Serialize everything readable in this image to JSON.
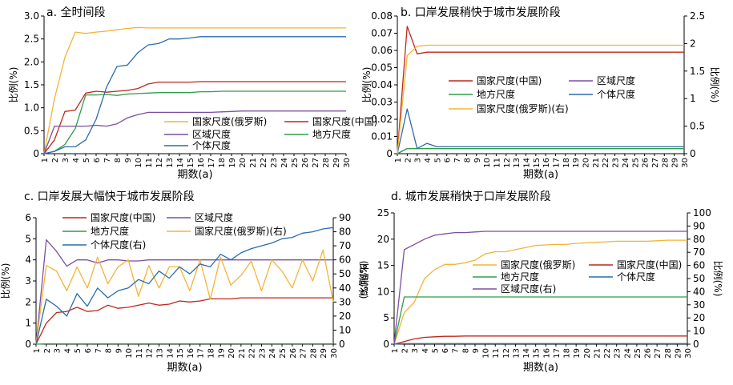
{
  "colors": {
    "national_ru": "#f5b335",
    "national_cn": "#c0261a",
    "regional": "#7b4fa0",
    "local": "#2f9e49",
    "individual": "#2b6cad"
  },
  "chart_data": [
    {
      "type": "line",
      "title": "a. 全时间段",
      "xlabel": "期数(a)",
      "ylabel": "比例(%)",
      "x": [
        1,
        2,
        3,
        4,
        5,
        6,
        7,
        8,
        9,
        10,
        11,
        12,
        13,
        14,
        15,
        16,
        17,
        18,
        19,
        20,
        21,
        22,
        23,
        24,
        25,
        26,
        27,
        28,
        29,
        30
      ],
      "ylim": [
        0,
        3.0
      ],
      "yticks": [
        "0",
        "0.5",
        "1.0",
        "1.5",
        "2.0",
        "2.5",
        "3.0"
      ],
      "legend": [
        "国家尺度(俄罗斯)",
        "国家尺度(中国)",
        "区域尺度",
        "地方尺度",
        "个体尺度"
      ],
      "series": [
        {
          "name": "国家尺度(俄罗斯)",
          "color": "national_ru",
          "values": [
            0,
            1.2,
            2.1,
            2.65,
            2.62,
            2.65,
            2.67,
            2.7,
            2.73,
            2.75,
            2.74,
            2.74,
            2.74,
            2.74,
            2.74,
            2.74,
            2.74,
            2.74,
            2.74,
            2.74,
            2.74,
            2.74,
            2.74,
            2.74,
            2.74,
            2.74,
            2.74,
            2.74,
            2.74,
            2.74
          ]
        },
        {
          "name": "国家尺度(中国)",
          "color": "national_cn",
          "values": [
            0,
            0.3,
            0.92,
            0.95,
            1.32,
            1.36,
            1.34,
            1.36,
            1.38,
            1.42,
            1.52,
            1.56,
            1.56,
            1.56,
            1.56,
            1.57,
            1.57,
            1.57,
            1.57,
            1.57,
            1.57,
            1.57,
            1.57,
            1.57,
            1.57,
            1.57,
            1.57,
            1.57,
            1.57,
            1.57
          ]
        },
        {
          "name": "区域尺度",
          "color": "regional",
          "values": [
            0,
            0.6,
            0.6,
            0.6,
            0.6,
            0.62,
            0.6,
            0.65,
            0.78,
            0.85,
            0.9,
            0.9,
            0.9,
            0.9,
            0.9,
            0.9,
            0.9,
            0.91,
            0.92,
            0.93,
            0.93,
            0.93,
            0.93,
            0.93,
            0.93,
            0.93,
            0.93,
            0.93,
            0.93,
            0.93
          ]
        },
        {
          "name": "地方尺度",
          "color": "local",
          "values": [
            0,
            0.05,
            0.2,
            0.55,
            1.28,
            1.28,
            1.29,
            1.27,
            1.3,
            1.31,
            1.32,
            1.33,
            1.33,
            1.33,
            1.33,
            1.35,
            1.35,
            1.36,
            1.36,
            1.36,
            1.36,
            1.36,
            1.36,
            1.36,
            1.36,
            1.36,
            1.36,
            1.36,
            1.36,
            1.36
          ]
        },
        {
          "name": "个体尺度",
          "color": "individual",
          "values": [
            0,
            0.05,
            0.15,
            0.15,
            0.3,
            0.75,
            1.45,
            1.9,
            1.93,
            2.2,
            2.37,
            2.4,
            2.5,
            2.5,
            2.52,
            2.55,
            2.55,
            2.55,
            2.55,
            2.55,
            2.55,
            2.55,
            2.55,
            2.55,
            2.55,
            2.55,
            2.55,
            2.55,
            2.55,
            2.55
          ]
        }
      ]
    },
    {
      "type": "line",
      "title": "b. 口岸发展稍快于城市发展阶段",
      "xlabel": "期数(a)",
      "ylabel": "比例(%)",
      "ylabel_right": "比例(%)",
      "x": [
        1,
        2,
        3,
        4,
        5,
        6,
        7,
        8,
        9,
        10,
        11,
        12,
        13,
        14,
        15,
        16,
        17,
        18,
        19,
        20,
        21,
        22,
        23,
        24,
        25,
        26,
        27,
        28,
        29,
        30
      ],
      "ylim": [
        0,
        0.08
      ],
      "ylim_right": [
        0,
        2.5
      ],
      "yticks": [
        "0",
        "0.01",
        "0.02",
        "0.03",
        "0.04",
        "0.05",
        "0.06",
        "0.07",
        "0.08"
      ],
      "yticks_right": [
        "0",
        "0.5",
        "1",
        "1.5",
        "2",
        "2.5"
      ],
      "legend": [
        "国家尺度(中国)",
        "区域尺度",
        "地方尺度",
        "个体尺度",
        "国家尺度(俄罗斯)(右)"
      ],
      "series": [
        {
          "name": "国家尺度(中国)",
          "color": "national_cn",
          "axis": "left",
          "values": [
            0,
            0.074,
            0.058,
            0.059,
            0.059,
            0.059,
            0.059,
            0.059,
            0.059,
            0.059,
            0.059,
            0.059,
            0.059,
            0.059,
            0.059,
            0.059,
            0.059,
            0.059,
            0.059,
            0.059,
            0.059,
            0.059,
            0.059,
            0.059,
            0.059,
            0.059,
            0.059,
            0.059,
            0.059,
            0.059
          ]
        },
        {
          "name": "区域尺度",
          "color": "regional",
          "axis": "left",
          "values": [
            0,
            0.003,
            0.003,
            0.003,
            0.003,
            0.003,
            0.003,
            0.003,
            0.003,
            0.003,
            0.003,
            0.003,
            0.003,
            0.003,
            0.003,
            0.003,
            0.003,
            0.003,
            0.003,
            0.003,
            0.003,
            0.003,
            0.003,
            0.003,
            0.003,
            0.003,
            0.003,
            0.003,
            0.003,
            0.003
          ]
        },
        {
          "name": "地方尺度",
          "color": "local",
          "axis": "left",
          "values": [
            0,
            0.003,
            0.003,
            0.003,
            0.003,
            0.003,
            0.003,
            0.003,
            0.003,
            0.003,
            0.003,
            0.003,
            0.003,
            0.003,
            0.003,
            0.003,
            0.003,
            0.003,
            0.003,
            0.003,
            0.003,
            0.003,
            0.003,
            0.003,
            0.003,
            0.003,
            0.003,
            0.003,
            0.003,
            0.003
          ]
        },
        {
          "name": "个体尺度",
          "color": "individual",
          "axis": "left",
          "values": [
            0,
            0.026,
            0.003,
            0.006,
            0.004,
            0.004,
            0.004,
            0.004,
            0.004,
            0.004,
            0.004,
            0.004,
            0.004,
            0.004,
            0.004,
            0.004,
            0.004,
            0.004,
            0.004,
            0.004,
            0.004,
            0.004,
            0.004,
            0.004,
            0.004,
            0.004,
            0.004,
            0.004,
            0.004,
            0.004
          ]
        },
        {
          "name": "国家尺度(俄罗斯)(右)",
          "color": "national_ru",
          "axis": "right",
          "values": [
            0,
            1.78,
            1.95,
            1.97,
            1.97,
            1.97,
            1.97,
            1.97,
            1.97,
            1.97,
            1.97,
            1.97,
            1.97,
            1.97,
            1.97,
            1.97,
            1.97,
            1.97,
            1.97,
            1.97,
            1.97,
            1.97,
            1.97,
            1.97,
            1.97,
            1.97,
            1.97,
            1.97,
            1.97,
            1.97
          ]
        }
      ]
    },
    {
      "type": "line",
      "title": "c. 口岸发展大幅快于城市发展阶段",
      "xlabel": "期数(a)",
      "ylabel": "比例(%)",
      "ylabel_right": "比例(%)",
      "x": [
        1,
        2,
        3,
        4,
        5,
        6,
        7,
        8,
        9,
        10,
        11,
        12,
        13,
        14,
        15,
        16,
        17,
        18,
        19,
        20,
        21,
        22,
        23,
        24,
        25,
        26,
        27,
        28,
        29,
        30
      ],
      "ylim": [
        0,
        6
      ],
      "ylim_right": [
        0,
        90
      ],
      "yticks": [
        "0",
        "1",
        "2",
        "3",
        "4",
        "5",
        "6"
      ],
      "yticks_right": [
        "0",
        "10",
        "20",
        "30",
        "40",
        "50",
        "60",
        "70",
        "80",
        "90"
      ],
      "legend": [
        "国家尺度(中国)",
        "区域尺度",
        "地方尺度",
        "国家尺度(俄罗斯)(右)",
        "个体尺度(右)"
      ],
      "series": [
        {
          "name": "国家尺度(中国)",
          "color": "national_cn",
          "axis": "left",
          "values": [
            0,
            1.0,
            1.5,
            1.55,
            1.75,
            1.55,
            1.6,
            1.85,
            1.7,
            1.75,
            1.85,
            1.95,
            1.85,
            1.9,
            2.05,
            2.0,
            2.05,
            2.15,
            2.15,
            2.15,
            2.2,
            2.2,
            2.2,
            2.2,
            2.2,
            2.2,
            2.2,
            2.2,
            2.2,
            2.2
          ]
        },
        {
          "name": "区域尺度",
          "color": "regional",
          "axis": "left",
          "values": [
            0,
            4.95,
            4.4,
            3.7,
            4.0,
            4.0,
            3.85,
            4.0,
            4.0,
            3.95,
            3.95,
            4.0,
            4.0,
            4.0,
            4.0,
            4.0,
            4.0,
            4.0,
            4.0,
            4.0,
            4.0,
            4.0,
            4.0,
            4.0,
            4.0,
            4.0,
            4.0,
            4.0,
            4.0,
            4.0
          ]
        },
        {
          "name": "地方尺度",
          "color": "local",
          "axis": "left",
          "values": [
            0,
            0.02,
            0.02,
            0.02,
            0.02,
            0.02,
            0.02,
            0.02,
            0.02,
            0.02,
            0.02,
            0.02,
            0.02,
            0.02,
            0.02,
            0.02,
            0.02,
            0.02,
            0.02,
            0.02,
            0.02,
            0.02,
            0.02,
            0.02,
            0.02,
            0.02,
            0.02,
            0.02,
            0.02,
            0.02
          ]
        },
        {
          "name": "国家尺度(俄罗斯)(右)",
          "color": "national_ru",
          "axis": "right",
          "values": [
            0,
            56,
            52,
            38,
            55,
            40,
            62,
            43,
            55,
            60,
            34,
            56,
            40,
            55,
            55,
            38,
            60,
            32,
            62,
            42,
            49,
            59,
            38,
            60,
            52,
            40,
            60,
            45,
            67,
            30
          ]
        },
        {
          "name": "个体尺度(右)",
          "color": "individual",
          "axis": "right",
          "values": [
            0,
            32,
            27,
            20,
            36,
            27,
            40,
            33,
            38,
            40,
            46,
            43,
            52,
            47,
            55,
            50,
            57,
            55,
            64,
            60,
            65,
            68,
            70,
            72,
            75,
            76,
            79,
            80,
            82,
            83
          ]
        }
      ]
    },
    {
      "type": "line",
      "title": "d. 城市发展稍快于口岸发展阶段",
      "xlabel": "期数(a)",
      "ylabel": "比例(%)",
      "ylabel_right": "比例(%)",
      "x": [
        1,
        2,
        3,
        4,
        5,
        6,
        7,
        8,
        9,
        10,
        11,
        12,
        13,
        14,
        15,
        16,
        17,
        18,
        19,
        20,
        21,
        22,
        23,
        24,
        25,
        26,
        27,
        28,
        29,
        30
      ],
      "ylim": [
        0,
        25
      ],
      "ylim_right": [
        0,
        100
      ],
      "yticks": [
        "0",
        "5",
        "10",
        "15",
        "20",
        "25"
      ],
      "yticks_right": [
        "0",
        "10",
        "20",
        "30",
        "40",
        "50",
        "60",
        "70",
        "80",
        "90",
        "100"
      ],
      "legend": [
        "国家尺度(俄罗斯)",
        "国家尺度(中国)",
        "地方尺度",
        "个体尺度",
        "区域尺度(右)"
      ],
      "series": [
        {
          "name": "国家尺度(俄罗斯)",
          "color": "national_ru",
          "axis": "left",
          "values": [
            0,
            6.0,
            8.0,
            12.5,
            14.2,
            15.2,
            15.2,
            15.5,
            16.0,
            17.2,
            17.6,
            17.6,
            18.0,
            18.4,
            18.8,
            18.9,
            19.0,
            19.0,
            19.2,
            19.3,
            19.4,
            19.5,
            19.6,
            19.6,
            19.6,
            19.6,
            19.7,
            19.8,
            19.8,
            19.8
          ]
        },
        {
          "name": "国家尺度(中国)",
          "color": "national_cn",
          "axis": "left",
          "values": [
            0,
            0.5,
            1.0,
            1.3,
            1.4,
            1.5,
            1.5,
            1.55,
            1.55,
            1.55,
            1.55,
            1.55,
            1.55,
            1.55,
            1.55,
            1.55,
            1.55,
            1.55,
            1.55,
            1.55,
            1.55,
            1.55,
            1.55,
            1.55,
            1.55,
            1.55,
            1.55,
            1.55,
            1.55,
            1.55
          ]
        },
        {
          "name": "地方尺度",
          "color": "local",
          "axis": "left",
          "values": [
            0,
            9.0,
            9.0,
            9.0,
            9.0,
            9.0,
            9.0,
            9.0,
            9.0,
            9.0,
            9.0,
            9.0,
            9.0,
            9.0,
            9.0,
            9.0,
            9.0,
            9.0,
            9.0,
            9.0,
            9.0,
            9.0,
            9.0,
            9.0,
            9.0,
            9.0,
            9.0,
            9.0,
            9.0,
            9.0
          ]
        },
        {
          "name": "个体尺度",
          "color": "individual",
          "axis": "left",
          "values": [
            0,
            0.1,
            0.1,
            0.1,
            0.1,
            0.1,
            0.1,
            0.1,
            0.1,
            0.1,
            0.1,
            0.1,
            0.1,
            0.1,
            0.1,
            0.1,
            0.1,
            0.1,
            0.1,
            0.1,
            0.1,
            0.1,
            0.1,
            0.1,
            0.1,
            0.1,
            0.1,
            0.1,
            0.1,
            0.1
          ]
        },
        {
          "name": "区域尺度(右)",
          "color": "regional",
          "axis": "right",
          "values": [
            0,
            72,
            76,
            80,
            83,
            84,
            85,
            85,
            85.5,
            86,
            86,
            86,
            86,
            86,
            86,
            86,
            86,
            86,
            86,
            86,
            86,
            86,
            86,
            86,
            86,
            86,
            86,
            86,
            86,
            86
          ]
        }
      ]
    }
  ]
}
